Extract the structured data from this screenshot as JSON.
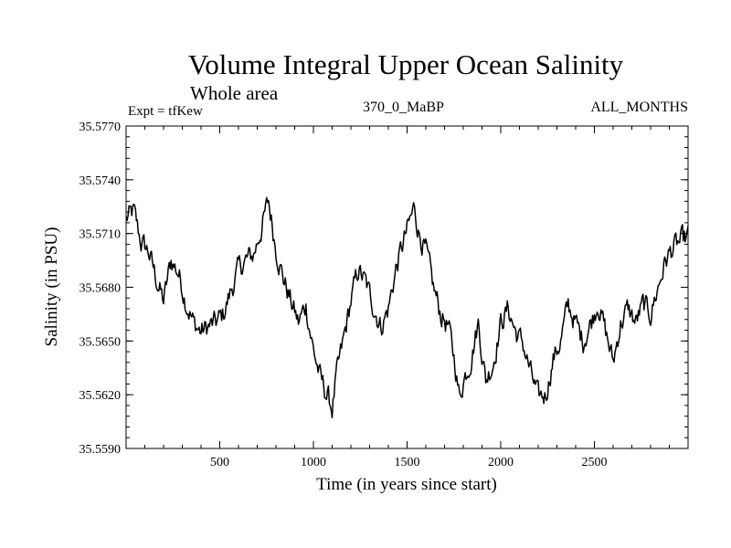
{
  "chart_data": {
    "type": "line",
    "title": "Volume Integral Upper Ocean Salinity",
    "subtitle": "Whole area",
    "left_label": "Expt = tfKew",
    "center_label": "370_0_MaBP",
    "right_label": "ALL_MONTHS",
    "xlabel": "Time (in years since start)",
    "ylabel": "Salinity (in PSU)",
    "xlim": [
      0,
      3000
    ],
    "ylim": [
      35.559,
      35.577
    ],
    "x_ticks": [
      500,
      1000,
      1500,
      2000,
      2500
    ],
    "x_tick_labels": [
      "500",
      "1000",
      "1500",
      "2000",
      "2500"
    ],
    "y_ticks": [
      35.559,
      35.562,
      35.565,
      35.568,
      35.571,
      35.574,
      35.577
    ],
    "y_tick_labels": [
      "35.5590",
      "35.5620",
      "35.5650",
      "35.5680",
      "35.5710",
      "35.5740",
      "35.5770"
    ],
    "grid": false,
    "line_color": "#000000",
    "series": [
      {
        "x": [
          0,
          40,
          80,
          120,
          160,
          200,
          240,
          280,
          320,
          360,
          400,
          440,
          480,
          520,
          560,
          600,
          640,
          680,
          720,
          760,
          800,
          840,
          880,
          920,
          960,
          1000,
          1040,
          1080,
          1100,
          1120,
          1160,
          1200,
          1240,
          1280,
          1320,
          1360,
          1400,
          1440,
          1480,
          1520,
          1540,
          1560,
          1600,
          1640,
          1680,
          1720,
          1760,
          1780,
          1800,
          1840,
          1880,
          1920,
          1960,
          2000,
          2040,
          2080,
          2120,
          2160,
          2200,
          2240,
          2280,
          2320,
          2360,
          2400,
          2440,
          2480,
          2520,
          2560,
          2600,
          2640,
          2680,
          2720,
          2760,
          2800,
          2840,
          2880,
          2920,
          2960,
          3000
        ],
        "y": [
          35.5718,
          35.5722,
          35.5705,
          35.57,
          35.5685,
          35.5672,
          35.5695,
          35.5688,
          35.5672,
          35.566,
          35.5655,
          35.5658,
          35.566,
          35.5665,
          35.5678,
          35.569,
          35.5695,
          35.5698,
          35.5712,
          35.5728,
          35.5702,
          35.5685,
          35.5672,
          35.566,
          35.567,
          35.5645,
          35.5628,
          35.5618,
          35.5612,
          35.5628,
          35.565,
          35.5672,
          35.569,
          35.5682,
          35.567,
          35.5658,
          35.5668,
          35.569,
          35.5705,
          35.5718,
          35.5725,
          35.5712,
          35.57,
          35.568,
          35.5665,
          35.5658,
          35.5635,
          35.5618,
          35.5628,
          35.564,
          35.566,
          35.5628,
          35.5638,
          35.566,
          35.5668,
          35.5655,
          35.5648,
          35.5632,
          35.5618,
          35.562,
          35.564,
          35.565,
          35.567,
          35.566,
          35.565,
          35.566,
          35.5672,
          35.5655,
          35.5638,
          35.566,
          35.5668,
          35.566,
          35.567,
          35.5665,
          35.568,
          35.5695,
          35.5702,
          35.5705,
          35.5708
        ]
      }
    ]
  }
}
